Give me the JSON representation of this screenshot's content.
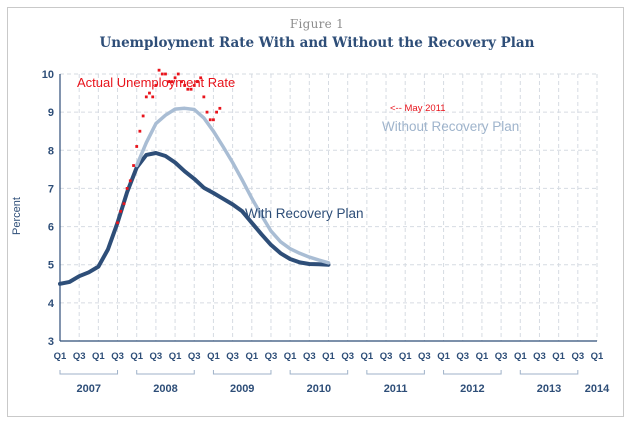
{
  "figure": {
    "label": "Figure 1",
    "title": "Unemployment Rate With and Without the Recovery Plan"
  },
  "chart_data": {
    "type": "line",
    "ylabel": "Percent",
    "xlabel": "",
    "ylim": [
      3,
      10
    ],
    "yticks": [
      3,
      4,
      5,
      6,
      7,
      8,
      9,
      10
    ],
    "grid": true,
    "quarter_tick_labels": [
      "Q1",
      "",
      "Q3",
      "",
      "Q1",
      "",
      "Q3",
      "",
      "Q1",
      "",
      "Q3",
      "",
      "Q1",
      "",
      "Q3",
      "",
      "Q1",
      "",
      "Q3",
      "",
      "Q1",
      "",
      "Q3",
      "",
      "Q1",
      "",
      "Q3",
      "",
      "Q1",
      "",
      "Q3",
      "",
      "Q1",
      "",
      "Q3",
      "",
      "Q1",
      "",
      "Q3",
      "",
      "Q1",
      "",
      "Q3",
      "",
      "Q1",
      "",
      "Q3",
      "",
      "Q1",
      "",
      "Q3",
      "",
      "Q1",
      "",
      "Q3",
      "",
      "Q1"
    ],
    "years": [
      "2007",
      "2008",
      "2009",
      "2010",
      "2011",
      "2012",
      "2013",
      "2014"
    ],
    "annotations": [
      {
        "text": "Actual Unemployment Rate",
        "color": "#e8141c"
      },
      {
        "text": "Without Recovery Plan",
        "color": "#9fb4cc"
      },
      {
        "text": "With Recovery Plan",
        "color": "#2e4e78"
      },
      {
        "text": "<-- May 2011",
        "color": "#e8141c"
      }
    ],
    "series": [
      {
        "kind": "line",
        "color": "#2e4e78",
        "x": [
          0,
          1,
          2,
          3,
          4,
          5,
          6,
          7,
          8,
          9,
          10,
          11,
          12,
          13,
          14,
          15,
          16,
          17,
          18,
          19,
          20,
          21,
          22,
          23,
          24,
          25,
          26,
          27,
          28
        ],
        "values": [
          4.5,
          4.55,
          4.7,
          4.8,
          4.95,
          5.4,
          6.1,
          6.9,
          7.55,
          7.88,
          7.93,
          7.85,
          7.68,
          7.45,
          7.25,
          7.02,
          6.88,
          6.73,
          6.58,
          6.4,
          6.1,
          5.8,
          5.52,
          5.3,
          5.15,
          5.06,
          5.02,
          5.01,
          5.0
        ]
      },
      {
        "kind": "line",
        "color": "#a9bdd4",
        "x": [
          8,
          9,
          10,
          11,
          12,
          13,
          14,
          15,
          16,
          17,
          18,
          19,
          20,
          21,
          22,
          23,
          24,
          25,
          26,
          27,
          28
        ],
        "values": [
          7.6,
          8.2,
          8.7,
          8.92,
          9.08,
          9.1,
          9.07,
          8.85,
          8.5,
          8.1,
          7.68,
          7.22,
          6.74,
          6.3,
          5.88,
          5.6,
          5.42,
          5.3,
          5.2,
          5.12,
          5.05
        ]
      },
      {
        "kind": "scatter",
        "color": "#e8141c",
        "x": [
          6,
          6.33,
          6.67,
          7,
          7.33,
          7.67,
          8,
          8.33,
          8.67,
          9,
          9.33,
          9.67,
          10,
          10.33,
          10.67,
          11,
          11.33,
          11.67,
          12,
          12.33,
          12.67,
          13,
          13.33,
          13.67,
          14,
          14.33,
          14.67,
          15,
          15.33,
          15.67,
          16,
          16.33,
          16.67
        ],
        "values": [
          6.1,
          6.4,
          6.6,
          7.0,
          7.2,
          7.6,
          8.1,
          8.5,
          8.9,
          9.4,
          9.5,
          9.4,
          9.7,
          10.1,
          10.0,
          10.0,
          9.8,
          9.8,
          9.9,
          10.0,
          9.8,
          9.7,
          9.6,
          9.6,
          9.7,
          9.8,
          9.9,
          9.4,
          9.0,
          8.8,
          8.8,
          9.0,
          9.1
        ]
      }
    ]
  }
}
